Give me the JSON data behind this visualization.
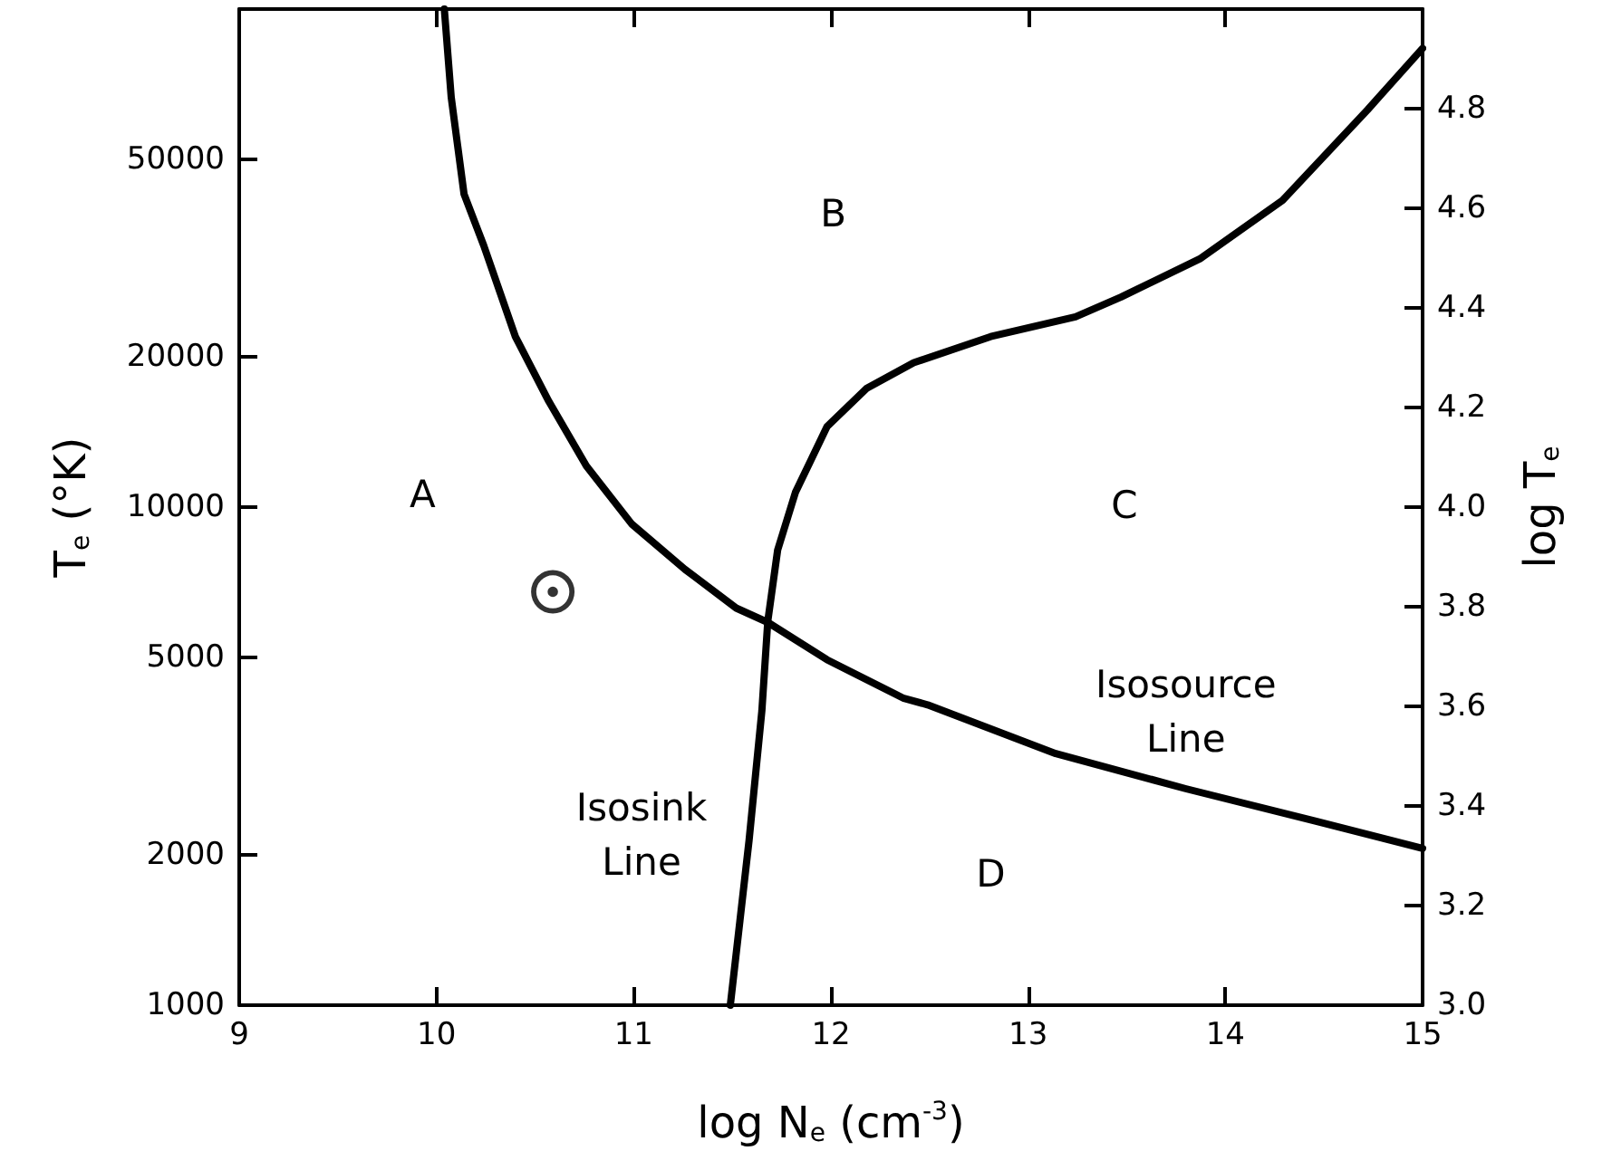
{
  "chart_data": {
    "type": "line",
    "xlabel": "log N$_{e}$ (cm$^{-3}$)",
    "ylabel": "T$_{e}$ (°K)",
    "y2label": "log T$_{e}$",
    "xlim": [
      9,
      15
    ],
    "xticks": [
      9,
      10,
      11,
      12,
      13,
      14,
      15
    ],
    "ylim": [
      1000,
      100000
    ],
    "yticks": [
      1000,
      2000,
      5000,
      10000,
      20000,
      50000
    ],
    "y2lim": [
      3,
      5
    ],
    "y2ticks": [
      {
        "value": 3,
        "label": "3.0"
      },
      {
        "value": 3.2,
        "label": "3.2"
      },
      {
        "value": 3.4,
        "label": "3.4"
      },
      {
        "value": 3.6,
        "label": "3.6"
      },
      {
        "value": 3.8,
        "label": "3.8"
      },
      {
        "value": 4,
        "label": "4.0"
      },
      {
        "value": 4.2,
        "label": "4.2"
      },
      {
        "value": 4.4,
        "label": "4.4"
      },
      {
        "value": 4.6,
        "label": "4.6"
      },
      {
        "value": 4.8,
        "label": "4.8"
      }
    ],
    "log": "y",
    "grid": false,
    "line_style": "solid",
    "series": [
      {
        "color": "#000000",
        "x": [
          10.04,
          10.075,
          10.14,
          10.24,
          10.4,
          10.57,
          10.76,
          10.99,
          11.26,
          11.52,
          11.68,
          11.98,
          12.37,
          12.49,
          13.14,
          13.8,
          14.46,
          15
        ],
        "values": [
          100000,
          66500,
          42500,
          33500,
          22000,
          16300,
          12100,
          9250,
          7500,
          6270,
          5870,
          4940,
          4130,
          4010,
          3200,
          2720,
          2340,
          2065
        ]
      },
      {
        "color": "#000000",
        "x": [
          11.49,
          11.585,
          11.65,
          11.68,
          11.73,
          11.82,
          11.98,
          12.18,
          12.42,
          12.81,
          13.24,
          13.47,
          13.87,
          14.29,
          14.72,
          15
        ],
        "values": [
          1000,
          2140,
          3900,
          5900,
          8200,
          10700,
          14500,
          17300,
          19500,
          22000,
          24100,
          26400,
          31500,
          41300,
          62700,
          83400
        ]
      },
      {
        "type": "scatter",
        "marker": "circle",
        "color": "#000000",
        "x": [
          10.59
        ],
        "values": [
          6760
        ]
      }
    ],
    "annotations": [
      "A",
      "B",
      "C",
      "D",
      "Isosink\nLine",
      "Isosource\nLine"
    ]
  }
}
